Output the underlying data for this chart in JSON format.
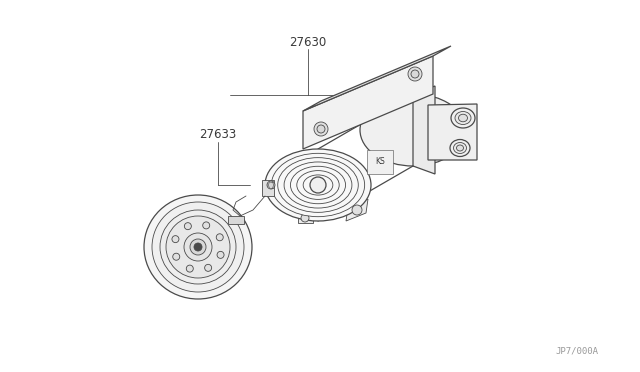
{
  "bg_color": "#ffffff",
  "line_color": "#4a4a4a",
  "text_color": "#3a3a3a",
  "part_27630": "27630",
  "part_27633": "27633",
  "ref_code": "JP7/000A",
  "fig_width": 6.4,
  "fig_height": 3.72,
  "dpi": 100
}
